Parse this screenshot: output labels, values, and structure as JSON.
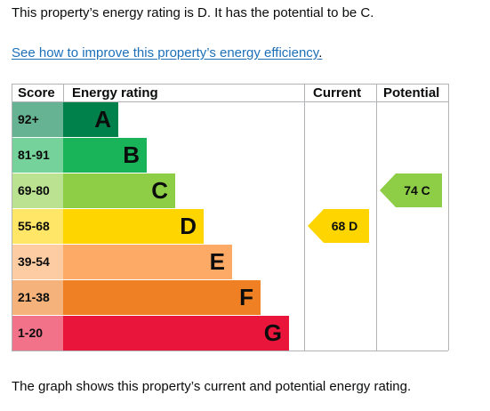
{
  "intro_text": "This property’s energy rating is D. It has the potential to be C.",
  "link_text": "See how to improve this property’s energy efficiency",
  "link_suffix": ".",
  "footer_text": "The graph shows this property’s current and potential energy rating.",
  "chart_data": {
    "type": "table",
    "headers": {
      "score": "Score",
      "rating": "Energy rating",
      "current": "Current",
      "potential": "Potential"
    },
    "bands": [
      {
        "letter": "A",
        "range": "92+",
        "color": "#00804b",
        "score_color": "#66b393"
      },
      {
        "letter": "B",
        "range": "81-91",
        "color": "#19b459",
        "score_color": "#75d29b"
      },
      {
        "letter": "C",
        "range": "69-80",
        "color": "#8dce46",
        "score_color": "#bbe290"
      },
      {
        "letter": "D",
        "range": "55-68",
        "color": "#ffd500",
        "score_color": "#ffe666"
      },
      {
        "letter": "E",
        "range": "39-54",
        "color": "#fcaa65",
        "score_color": "#fdcca3"
      },
      {
        "letter": "F",
        "range": "21-38",
        "color": "#ef8023",
        "score_color": "#f5b37b"
      },
      {
        "letter": "G",
        "range": "1-20",
        "color": "#e9153b",
        "score_color": "#f27389"
      }
    ],
    "current": {
      "value": 68,
      "letter": "D",
      "label": "68 D",
      "color": "#ffd500"
    },
    "potential": {
      "value": 74,
      "letter": "C",
      "label": "74 C",
      "color": "#8dce46"
    }
  }
}
